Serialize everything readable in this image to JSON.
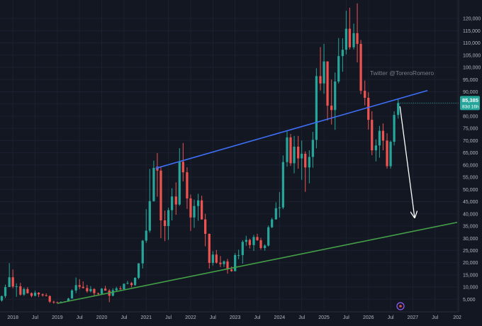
{
  "watermark": "Twitter @ToreroRomero",
  "price_tag": {
    "price": "85,385",
    "countdown": "83d 16h"
  },
  "colors": {
    "background": "#131722",
    "up": "#26a69a",
    "down": "#ef5350",
    "resistance": "#3d6ef5",
    "support": "#43a047",
    "arrow": "#ffffff",
    "grid": "#1c2030",
    "axis_text": "#b2b5be"
  },
  "chart_data": {
    "type": "candlestick",
    "title": "",
    "xlabel": "",
    "ylabel": "",
    "ylim": [
      0,
      125000
    ],
    "grid": true,
    "y_ticks": [
      "5,000",
      "10,000",
      "15,000",
      "20,000",
      "25,000",
      "30,000",
      "35,000",
      "40,000",
      "45,000",
      "50,000",
      "55,000",
      "60,000",
      "65,000",
      "70,000",
      "75,000",
      "80,000",
      "85,000",
      "90,000",
      "95,000",
      "100,000",
      "105,000",
      "110,000",
      "115,000",
      "120,000"
    ],
    "x_ticks": [
      {
        "label": "2018",
        "t": 2018.0
      },
      {
        "label": "Jul",
        "t": 2018.5
      },
      {
        "label": "2019",
        "t": 2019.0
      },
      {
        "label": "Jul",
        "t": 2019.5
      },
      {
        "label": "2020",
        "t": 2020.0
      },
      {
        "label": "Jul",
        "t": 2020.5
      },
      {
        "label": "2021",
        "t": 2021.0
      },
      {
        "label": "Jul",
        "t": 2021.5
      },
      {
        "label": "2022",
        "t": 2022.0
      },
      {
        "label": "Jul",
        "t": 2022.5
      },
      {
        "label": "2023",
        "t": 2023.0
      },
      {
        "label": "Jul",
        "t": 2023.5
      },
      {
        "label": "2024",
        "t": 2024.0
      },
      {
        "label": "Jul",
        "t": 2024.5
      },
      {
        "label": "2025",
        "t": 2025.0
      },
      {
        "label": "Jul",
        "t": 2025.5
      },
      {
        "label": "2026",
        "t": 2026.0
      },
      {
        "label": "Jul",
        "t": 2026.5
      },
      {
        "label": "2027",
        "t": 2027.0
      },
      {
        "label": "Jul",
        "t": 2027.5
      },
      {
        "label": "202",
        "t": 2028.0
      }
    ],
    "candles": [
      [
        2017.75,
        4500,
        6500,
        4000,
        6300
      ],
      [
        2017.83,
        6300,
        11000,
        5500,
        10000
      ],
      [
        2017.92,
        10000,
        19800,
        10000,
        14000
      ],
      [
        2018.0,
        14000,
        17200,
        9500,
        10200
      ],
      [
        2018.08,
        10200,
        11500,
        6000,
        10300
      ],
      [
        2018.17,
        10300,
        11700,
        6500,
        6900
      ],
      [
        2018.25,
        6900,
        9800,
        6400,
        9200
      ],
      [
        2018.33,
        9200,
        9950,
        7300,
        7500
      ],
      [
        2018.42,
        7500,
        7800,
        5800,
        6400
      ],
      [
        2018.5,
        6400,
        8500,
        6200,
        7700
      ],
      [
        2018.58,
        7700,
        7900,
        5900,
        7000
      ],
      [
        2018.67,
        7000,
        7400,
        6100,
        6600
      ],
      [
        2018.75,
        6600,
        7400,
        6200,
        6300
      ],
      [
        2018.83,
        6300,
        6600,
        3500,
        4000
      ],
      [
        2018.92,
        4000,
        4400,
        3200,
        3700
      ],
      [
        2019.0,
        3700,
        4100,
        3400,
        3400
      ],
      [
        2019.08,
        3400,
        4200,
        3400,
        3800
      ],
      [
        2019.17,
        3800,
        4200,
        3700,
        4100
      ],
      [
        2019.25,
        4100,
        5600,
        4100,
        5300
      ],
      [
        2019.33,
        5300,
        9100,
        5300,
        8600
      ],
      [
        2019.42,
        8600,
        13900,
        7500,
        10800
      ],
      [
        2019.5,
        10800,
        13200,
        9100,
        10100
      ],
      [
        2019.58,
        10100,
        12300,
        9400,
        9600
      ],
      [
        2019.67,
        9600,
        10900,
        7700,
        8300
      ],
      [
        2019.75,
        8300,
        10400,
        7800,
        9200
      ],
      [
        2019.83,
        9200,
        9500,
        6500,
        7500
      ],
      [
        2019.92,
        7500,
        7700,
        6500,
        7200
      ],
      [
        2020.0,
        7200,
        9600,
        6900,
        9350
      ],
      [
        2020.08,
        9350,
        10500,
        8500,
        8550
      ],
      [
        2020.17,
        8550,
        9200,
        3800,
        6450
      ],
      [
        2020.25,
        6450,
        9500,
        6200,
        8700
      ],
      [
        2020.33,
        8700,
        10100,
        8100,
        9450
      ],
      [
        2020.42,
        9450,
        10400,
        8900,
        9150
      ],
      [
        2020.5,
        9150,
        11500,
        8900,
        11350
      ],
      [
        2020.58,
        11350,
        12500,
        11100,
        11650
      ],
      [
        2020.67,
        11650,
        12100,
        9900,
        10800
      ],
      [
        2020.75,
        10800,
        14000,
        10500,
        13800
      ],
      [
        2020.83,
        13800,
        19800,
        13200,
        19700
      ],
      [
        2020.92,
        19700,
        29300,
        17600,
        29000
      ],
      [
        2021.0,
        29000,
        41900,
        28100,
        33100
      ],
      [
        2021.08,
        33100,
        58400,
        32300,
        45200
      ],
      [
        2021.17,
        45200,
        61800,
        45000,
        58800
      ],
      [
        2021.25,
        58800,
        64900,
        47000,
        57700
      ],
      [
        2021.33,
        57700,
        59500,
        30000,
        37300
      ],
      [
        2021.42,
        37300,
        41300,
        28800,
        35000
      ],
      [
        2021.5,
        35000,
        42500,
        29300,
        41500
      ],
      [
        2021.58,
        41500,
        50500,
        37300,
        47100
      ],
      [
        2021.67,
        47100,
        52900,
        39600,
        43800
      ],
      [
        2021.75,
        43800,
        66900,
        43300,
        61300
      ],
      [
        2021.83,
        61300,
        69000,
        53300,
        57000
      ],
      [
        2021.92,
        57000,
        59100,
        42000,
        46300
      ],
      [
        2022.0,
        46300,
        47900,
        33000,
        38500
      ],
      [
        2022.08,
        38500,
        45800,
        34300,
        43200
      ],
      [
        2022.17,
        43200,
        48200,
        37200,
        45500
      ],
      [
        2022.25,
        45500,
        47400,
        37600,
        37700
      ],
      [
        2022.33,
        37700,
        40000,
        26700,
        31800
      ],
      [
        2022.42,
        31800,
        31900,
        17600,
        19900
      ],
      [
        2022.5,
        19900,
        24700,
        18800,
        23300
      ],
      [
        2022.58,
        23300,
        25200,
        19600,
        20000
      ],
      [
        2022.67,
        20000,
        22700,
        18200,
        19400
      ],
      [
        2022.75,
        19400,
        20900,
        18200,
        20500
      ],
      [
        2022.83,
        20500,
        21500,
        15500,
        17200
      ],
      [
        2022.92,
        17200,
        18400,
        16300,
        16500
      ],
      [
        2023.0,
        16500,
        23900,
        16500,
        23100
      ],
      [
        2023.08,
        23100,
        25300,
        21400,
        23100
      ],
      [
        2023.17,
        23100,
        29200,
        19600,
        28500
      ],
      [
        2023.25,
        28500,
        31000,
        26900,
        29300
      ],
      [
        2023.33,
        29300,
        29800,
        25800,
        27200
      ],
      [
        2023.42,
        27200,
        31400,
        24800,
        30500
      ],
      [
        2023.5,
        30500,
        31800,
        28900,
        29200
      ],
      [
        2023.58,
        29200,
        30200,
        25300,
        26000
      ],
      [
        2023.67,
        26000,
        27500,
        24900,
        27000
      ],
      [
        2023.75,
        27000,
        35200,
        26600,
        34500
      ],
      [
        2023.83,
        34500,
        38400,
        34100,
        37700
      ],
      [
        2023.92,
        37700,
        44700,
        37700,
        42300
      ],
      [
        2024.0,
        42300,
        48900,
        38500,
        42600
      ],
      [
        2024.08,
        42600,
        63900,
        41900,
        61200
      ],
      [
        2024.17,
        61200,
        73800,
        59300,
        71300
      ],
      [
        2024.25,
        71300,
        72700,
        59600,
        60700
      ],
      [
        2024.33,
        60700,
        71900,
        56600,
        67500
      ],
      [
        2024.42,
        67500,
        71900,
        58500,
        62700
      ],
      [
        2024.5,
        62700,
        70000,
        53900,
        64600
      ],
      [
        2024.58,
        64600,
        65600,
        49000,
        59000
      ],
      [
        2024.67,
        59000,
        66000,
        52500,
        63300
      ],
      [
        2024.75,
        63300,
        73600,
        58900,
        70300
      ],
      [
        2024.83,
        70300,
        99600,
        66800,
        96400
      ],
      [
        2024.92,
        96400,
        108300,
        90500,
        93400
      ],
      [
        2025.0,
        93400,
        109600,
        89200,
        102400
      ],
      [
        2025.08,
        102400,
        102500,
        78200,
        84300
      ],
      [
        2025.17,
        84300,
        95000,
        76600,
        82500
      ],
      [
        2025.25,
        82500,
        97900,
        74400,
        94200
      ],
      [
        2025.33,
        94200,
        112000,
        93400,
        104600
      ],
      [
        2025.42,
        104600,
        111900,
        98200,
        107200
      ],
      [
        2025.5,
        107200,
        123200,
        105300,
        115800
      ],
      [
        2025.58,
        115800,
        124400,
        107300,
        108200
      ],
      [
        2025.67,
        108200,
        117900,
        107300,
        114000
      ],
      [
        2025.75,
        114000,
        126200,
        102000,
        109600
      ],
      [
        2025.83,
        109600,
        111200,
        89000,
        90400
      ],
      [
        2025.92,
        90400,
        94600,
        84400,
        87500
      ],
      [
        2026.0,
        87500,
        89800,
        74500,
        78500
      ],
      [
        2026.08,
        78500,
        82000,
        64000,
        66000
      ],
      [
        2026.17,
        66000,
        70500,
        61500,
        68000
      ],
      [
        2026.25,
        68000,
        76000,
        63000,
        74000
      ],
      [
        2026.33,
        74000,
        77000,
        66000,
        70000
      ],
      [
        2026.42,
        70000,
        73000,
        58500,
        59500
      ],
      [
        2026.5,
        59500,
        70000,
        58500,
        69500
      ],
      [
        2026.58,
        69500,
        82000,
        68000,
        80500
      ],
      [
        2026.67,
        80500,
        87000,
        79000,
        85385
      ]
    ],
    "series": [
      {
        "type": "trendline",
        "role": "resistance",
        "from": [
          2021.25,
          58800
        ],
        "to": [
          2027.33,
          90500
        ]
      },
      {
        "type": "trendline",
        "role": "support",
        "from": [
          2019.0,
          3300
        ],
        "to": [
          2028.0,
          36500
        ]
      },
      {
        "type": "arrow",
        "from": [
          2026.71,
          84000
        ],
        "to": [
          2027.04,
          38500
        ]
      }
    ]
  }
}
